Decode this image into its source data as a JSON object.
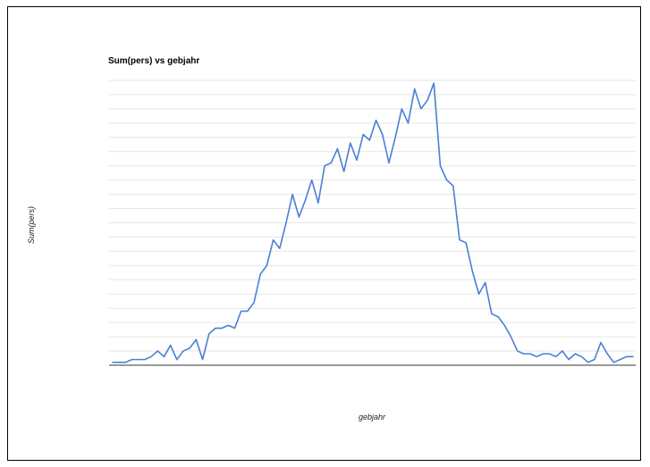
{
  "chart_data": {
    "type": "line",
    "title": "Sum(pers) vs gebjahr",
    "xlabel": "gebjahr",
    "ylabel": "Sum(pers)",
    "ylim": [
      0,
      100
    ],
    "grid": true,
    "legend": "none",
    "colors": {
      "line": "#4a7fd6",
      "grid": "#e6e6e6",
      "baseline": "#333333"
    },
    "series": [
      {
        "values": [
          1,
          1,
          1,
          2,
          2,
          2,
          3,
          5,
          3,
          7,
          2,
          5,
          6,
          9,
          2,
          11,
          13,
          13,
          14,
          13,
          19,
          19,
          22,
          32,
          35,
          44,
          41,
          50,
          60,
          52,
          58,
          65,
          57,
          70,
          71,
          76,
          68,
          78,
          72,
          81,
          79,
          86,
          81,
          71,
          80,
          90,
          85,
          97,
          90,
          93,
          99,
          70,
          65,
          63,
          44,
          43,
          33,
          25,
          29,
          18,
          17,
          14,
          10,
          5,
          4,
          4,
          3,
          4,
          4,
          3,
          5,
          2,
          4,
          3,
          1,
          2,
          8,
          4,
          1,
          2,
          3,
          3
        ]
      }
    ]
  }
}
